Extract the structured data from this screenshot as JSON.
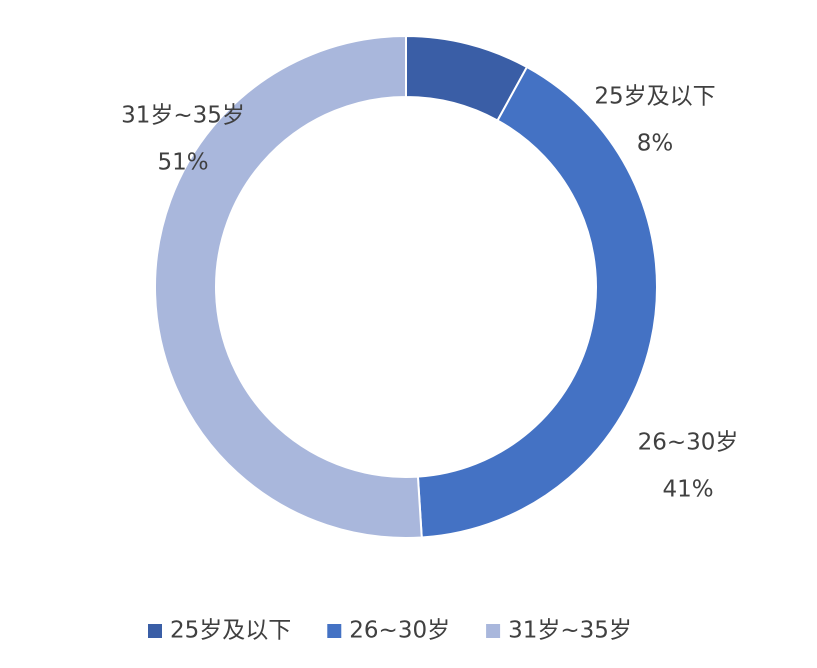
{
  "chart_data": {
    "type": "donut",
    "categories": [
      "25岁及以下",
      "26~30岁",
      "31岁~35岁"
    ],
    "values": [
      8,
      41,
      51
    ],
    "value_labels": [
      "8%",
      "41%",
      "51%"
    ],
    "colors": [
      "#3a5ea6",
      "#4472c4",
      "#a9b7dc"
    ],
    "legend": "bottom"
  }
}
